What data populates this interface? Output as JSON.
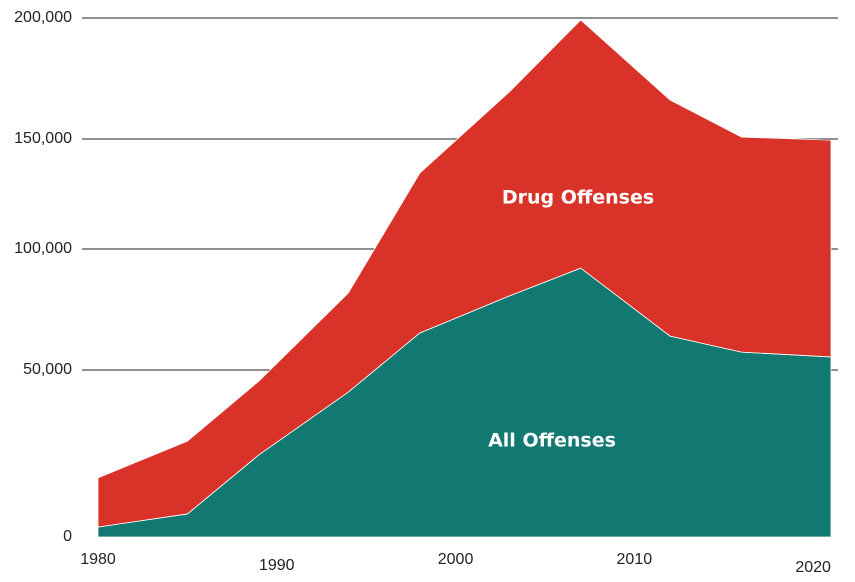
{
  "chart_data": {
    "type": "stacked_area",
    "x": [
      1980,
      1985,
      1989,
      1994,
      1998,
      2003,
      2007,
      2012,
      2016,
      2021
    ],
    "series": [
      {
        "name": "All Offenses",
        "color": "#127872",
        "values": [
          3000,
          6900,
          24600,
          43400,
          65300,
          80600,
          92100,
          64000,
          57400,
          55400
        ]
      },
      {
        "name": "Drug Offenses",
        "color": "#d93229",
        "values": [
          14700,
          21800,
          22100,
          38400,
          69200,
          88800,
          107100,
          102100,
          93400,
          94100
        ]
      }
    ],
    "xlim": [
      1980,
      2021
    ],
    "xticks": [
      1980,
      1990,
      2000,
      2010,
      2020
    ],
    "ylim": [
      0,
      200000
    ],
    "yticks": [
      0,
      {
        "value": 50000,
        "label": "50,000"
      },
      {
        "value": 100000,
        "label": "100,000"
      },
      {
        "value": 150000,
        "label": "150,000"
      },
      {
        "value": 200000,
        "label": "200,000"
      }
    ],
    "grid": true
  }
}
